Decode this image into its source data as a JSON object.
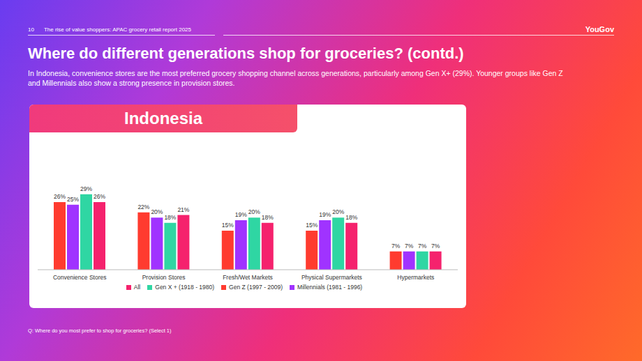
{
  "page": {
    "page_number": "10",
    "report": "The rise of value shoppers: APAC grocery retail report 2025",
    "brand": "YouGov",
    "heading": "Where do different generations shop for groceries? (contd.)",
    "subheading": "In Indonesia, convenience stores are the most preferred grocery shopping channel across generations, particularly among Gen X+ (29%). Younger groups like Gen Z and Millennials also show a strong presence in provision stores.",
    "footnote": "Q: Where do you most prefer to shop for groceries? (Select 1)"
  },
  "chart_data": {
    "type": "bar",
    "title": "Indonesia",
    "categories": [
      "Convenience Stores",
      "Provision Stores",
      "Fresh/Wet Markets",
      "Physical Supermarkets",
      "Hypermarkets"
    ],
    "series": [
      {
        "name": "Gen Z (1997 - 2009)",
        "color": "#ff3b2f",
        "values": [
          26,
          22,
          15,
          15,
          7
        ],
        "value_labels": [
          "26%",
          "22%",
          "15%",
          "15%",
          "7%"
        ]
      },
      {
        "name": "Millennials (1981 - 1996)",
        "color": "#a033ff",
        "values": [
          25,
          20,
          19,
          19,
          7
        ],
        "value_labels": [
          "25%",
          "20%",
          "19%",
          "19%",
          "7%"
        ]
      },
      {
        "name": "Gen X + (1918 - 1980)",
        "color": "#2fd6a3",
        "values": [
          29,
          18,
          20,
          20,
          7
        ],
        "value_labels": [
          "29%",
          "18%",
          "20%",
          "20%",
          "7%"
        ]
      },
      {
        "name": "All",
        "color": "#f5226d",
        "values": [
          26,
          21,
          18,
          18,
          7
        ],
        "value_labels": [
          "26%",
          "21%",
          "18%",
          "18%",
          "7%"
        ]
      }
    ],
    "ylim": [
      0,
      30
    ],
    "data_labels": true,
    "tick_labels": "x",
    "legend": "bottom",
    "grid": false
  }
}
